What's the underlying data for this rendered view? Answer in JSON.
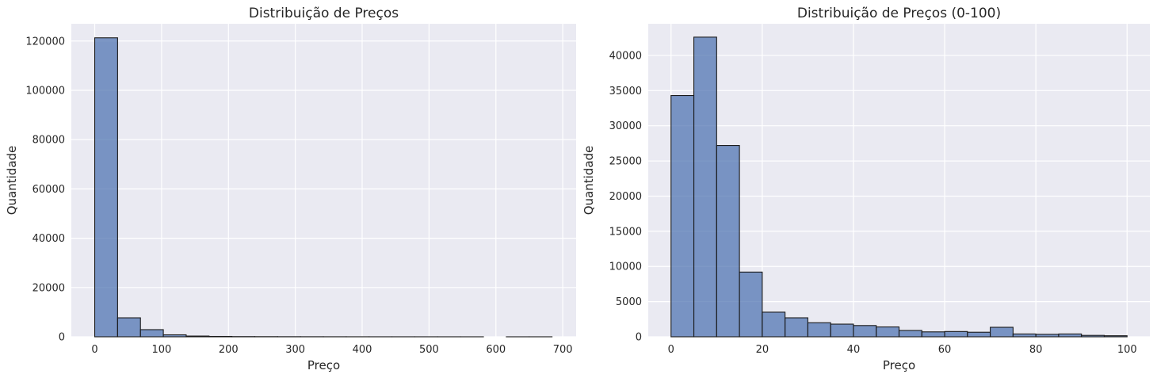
{
  "chart_data": [
    {
      "type": "bar",
      "title": "Distribuição de Preços",
      "xlabel": "Preço",
      "ylabel": "Quantidade",
      "xlim": [
        -35,
        720
      ],
      "ylim": [
        0,
        127000
      ],
      "xticks": [
        0,
        100,
        200,
        300,
        400,
        500,
        600,
        700
      ],
      "yticks": [
        0,
        20000,
        40000,
        60000,
        80000,
        100000,
        120000
      ],
      "bin_edges": [
        0,
        34.2,
        68.4,
        102.6,
        136.8,
        171,
        205.2,
        239.4,
        273.6,
        307.8,
        342,
        376.2,
        410.4,
        444.6,
        478.8,
        513,
        547.2,
        581.4,
        615.6,
        649.8,
        684
      ],
      "values": [
        121300,
        7700,
        2900,
        800,
        300,
        150,
        80,
        60,
        40,
        30,
        20,
        15,
        10,
        10,
        8,
        5,
        3,
        0,
        2,
        3
      ],
      "grid": true,
      "legend": "none"
    },
    {
      "type": "bar",
      "title": "Distribuição de Preços (0-100)",
      "xlabel": "Preço",
      "ylabel": "Quantidade",
      "xlim": [
        -5,
        105
      ],
      "ylim": [
        0,
        44500
      ],
      "xticks": [
        0,
        20,
        40,
        60,
        80,
        100
      ],
      "yticks": [
        0,
        5000,
        10000,
        15000,
        20000,
        25000,
        30000,
        35000,
        40000
      ],
      "bin_edges": [
        0,
        5,
        10,
        15,
        20,
        25,
        30,
        35,
        40,
        45,
        50,
        55,
        60,
        65,
        70,
        75,
        80,
        85,
        90,
        95,
        100
      ],
      "values": [
        34300,
        42600,
        27200,
        9200,
        3500,
        2700,
        2000,
        1800,
        1600,
        1400,
        900,
        700,
        750,
        650,
        1350,
        400,
        350,
        400,
        200,
        150
      ],
      "grid": true,
      "legend": "none"
    }
  ]
}
